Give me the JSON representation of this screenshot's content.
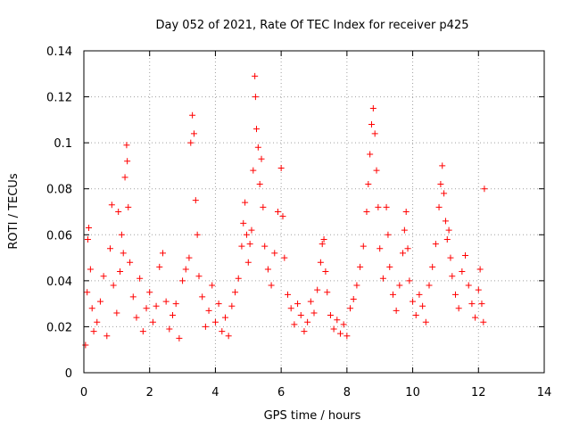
{
  "chart_data": {
    "type": "scatter",
    "title": "Day 052 of 2021, Rate Of TEC Index for receiver p425",
    "xlabel": "GPS time / hours",
    "ylabel": "ROTI / TECUs",
    "xlim": [
      0,
      14
    ],
    "ylim": [
      0,
      0.14
    ],
    "xticks": [
      0,
      2,
      4,
      6,
      8,
      10,
      12,
      14
    ],
    "xtick_labels": [
      "0",
      "2",
      "4",
      "6",
      "8",
      "10",
      "12",
      "14"
    ],
    "yticks": [
      0,
      0.02,
      0.04,
      0.06,
      0.08,
      0.1,
      0.12,
      0.14
    ],
    "ytick_labels": [
      "0",
      "0.02",
      "0.04",
      "0.06",
      "0.08",
      "0.1",
      "0.12",
      "0.14"
    ],
    "grid": true,
    "marker": "+",
    "marker_color": "#ff0000",
    "series": [
      {
        "name": "ROTI",
        "points": [
          [
            0.05,
            0.012
          ],
          [
            0.1,
            0.035
          ],
          [
            0.12,
            0.058
          ],
          [
            0.15,
            0.063
          ],
          [
            0.2,
            0.045
          ],
          [
            0.25,
            0.028
          ],
          [
            0.3,
            0.018
          ],
          [
            0.4,
            0.022
          ],
          [
            0.5,
            0.031
          ],
          [
            0.6,
            0.042
          ],
          [
            0.7,
            0.016
          ],
          [
            0.8,
            0.054
          ],
          [
            0.85,
            0.073
          ],
          [
            0.9,
            0.038
          ],
          [
            1.0,
            0.026
          ],
          [
            1.05,
            0.07
          ],
          [
            1.1,
            0.044
          ],
          [
            1.15,
            0.06
          ],
          [
            1.2,
            0.052
          ],
          [
            1.25,
            0.085
          ],
          [
            1.3,
            0.099
          ],
          [
            1.32,
            0.092
          ],
          [
            1.35,
            0.072
          ],
          [
            1.4,
            0.048
          ],
          [
            1.5,
            0.033
          ],
          [
            1.6,
            0.024
          ],
          [
            1.7,
            0.041
          ],
          [
            1.8,
            0.018
          ],
          [
            1.9,
            0.028
          ],
          [
            2.0,
            0.035
          ],
          [
            2.1,
            0.022
          ],
          [
            2.2,
            0.029
          ],
          [
            2.3,
            0.046
          ],
          [
            2.4,
            0.052
          ],
          [
            2.5,
            0.031
          ],
          [
            2.6,
            0.019
          ],
          [
            2.7,
            0.025
          ],
          [
            2.8,
            0.03
          ],
          [
            2.9,
            0.015
          ],
          [
            3.0,
            0.04
          ],
          [
            3.1,
            0.045
          ],
          [
            3.2,
            0.05
          ],
          [
            3.25,
            0.1
          ],
          [
            3.3,
            0.112
          ],
          [
            3.35,
            0.104
          ],
          [
            3.4,
            0.075
          ],
          [
            3.45,
            0.06
          ],
          [
            3.5,
            0.042
          ],
          [
            3.6,
            0.033
          ],
          [
            3.7,
            0.02
          ],
          [
            3.8,
            0.027
          ],
          [
            3.9,
            0.038
          ],
          [
            4.0,
            0.022
          ],
          [
            4.1,
            0.03
          ],
          [
            4.2,
            0.018
          ],
          [
            4.3,
            0.024
          ],
          [
            4.4,
            0.016
          ],
          [
            4.5,
            0.029
          ],
          [
            4.6,
            0.035
          ],
          [
            4.7,
            0.041
          ],
          [
            4.8,
            0.055
          ],
          [
            4.85,
            0.065
          ],
          [
            4.9,
            0.074
          ],
          [
            4.95,
            0.06
          ],
          [
            5.0,
            0.048
          ],
          [
            5.05,
            0.056
          ],
          [
            5.1,
            0.062
          ],
          [
            5.15,
            0.088
          ],
          [
            5.2,
            0.129
          ],
          [
            5.22,
            0.12
          ],
          [
            5.25,
            0.106
          ],
          [
            5.3,
            0.098
          ],
          [
            5.35,
            0.082
          ],
          [
            5.4,
            0.093
          ],
          [
            5.45,
            0.072
          ],
          [
            5.5,
            0.055
          ],
          [
            5.6,
            0.045
          ],
          [
            5.7,
            0.038
          ],
          [
            5.8,
            0.052
          ],
          [
            5.9,
            0.07
          ],
          [
            6.0,
            0.089
          ],
          [
            6.05,
            0.068
          ],
          [
            6.1,
            0.05
          ],
          [
            6.2,
            0.034
          ],
          [
            6.3,
            0.028
          ],
          [
            6.4,
            0.021
          ],
          [
            6.5,
            0.03
          ],
          [
            6.6,
            0.025
          ],
          [
            6.7,
            0.018
          ],
          [
            6.8,
            0.022
          ],
          [
            6.9,
            0.031
          ],
          [
            7.0,
            0.026
          ],
          [
            7.1,
            0.036
          ],
          [
            7.2,
            0.048
          ],
          [
            7.25,
            0.056
          ],
          [
            7.3,
            0.058
          ],
          [
            7.35,
            0.044
          ],
          [
            7.4,
            0.035
          ],
          [
            7.5,
            0.025
          ],
          [
            7.6,
            0.019
          ],
          [
            7.7,
            0.023
          ],
          [
            7.8,
            0.017
          ],
          [
            7.9,
            0.021
          ],
          [
            8.0,
            0.016
          ],
          [
            8.1,
            0.028
          ],
          [
            8.2,
            0.032
          ],
          [
            8.3,
            0.038
          ],
          [
            8.4,
            0.046
          ],
          [
            8.5,
            0.055
          ],
          [
            8.6,
            0.07
          ],
          [
            8.65,
            0.082
          ],
          [
            8.7,
            0.095
          ],
          [
            8.75,
            0.108
          ],
          [
            8.8,
            0.115
          ],
          [
            8.85,
            0.104
          ],
          [
            8.9,
            0.088
          ],
          [
            8.95,
            0.072
          ],
          [
            9.0,
            0.054
          ],
          [
            9.1,
            0.041
          ],
          [
            9.2,
            0.072
          ],
          [
            9.25,
            0.06
          ],
          [
            9.3,
            0.046
          ],
          [
            9.4,
            0.034
          ],
          [
            9.5,
            0.027
          ],
          [
            9.6,
            0.038
          ],
          [
            9.7,
            0.052
          ],
          [
            9.75,
            0.062
          ],
          [
            9.8,
            0.07
          ],
          [
            9.85,
            0.054
          ],
          [
            9.9,
            0.04
          ],
          [
            10.0,
            0.031
          ],
          [
            10.1,
            0.025
          ],
          [
            10.2,
            0.034
          ],
          [
            10.3,
            0.029
          ],
          [
            10.4,
            0.022
          ],
          [
            10.5,
            0.038
          ],
          [
            10.6,
            0.046
          ],
          [
            10.7,
            0.056
          ],
          [
            10.8,
            0.072
          ],
          [
            10.85,
            0.082
          ],
          [
            10.9,
            0.09
          ],
          [
            10.95,
            0.078
          ],
          [
            11.0,
            0.066
          ],
          [
            11.05,
            0.058
          ],
          [
            11.1,
            0.062
          ],
          [
            11.15,
            0.05
          ],
          [
            11.2,
            0.042
          ],
          [
            11.3,
            0.034
          ],
          [
            11.4,
            0.028
          ],
          [
            11.5,
            0.044
          ],
          [
            11.6,
            0.051
          ],
          [
            11.7,
            0.038
          ],
          [
            11.8,
            0.03
          ],
          [
            11.9,
            0.024
          ],
          [
            12.0,
            0.036
          ],
          [
            12.05,
            0.045
          ],
          [
            12.1,
            0.03
          ],
          [
            12.15,
            0.022
          ],
          [
            12.18,
            0.08
          ]
        ]
      }
    ]
  }
}
